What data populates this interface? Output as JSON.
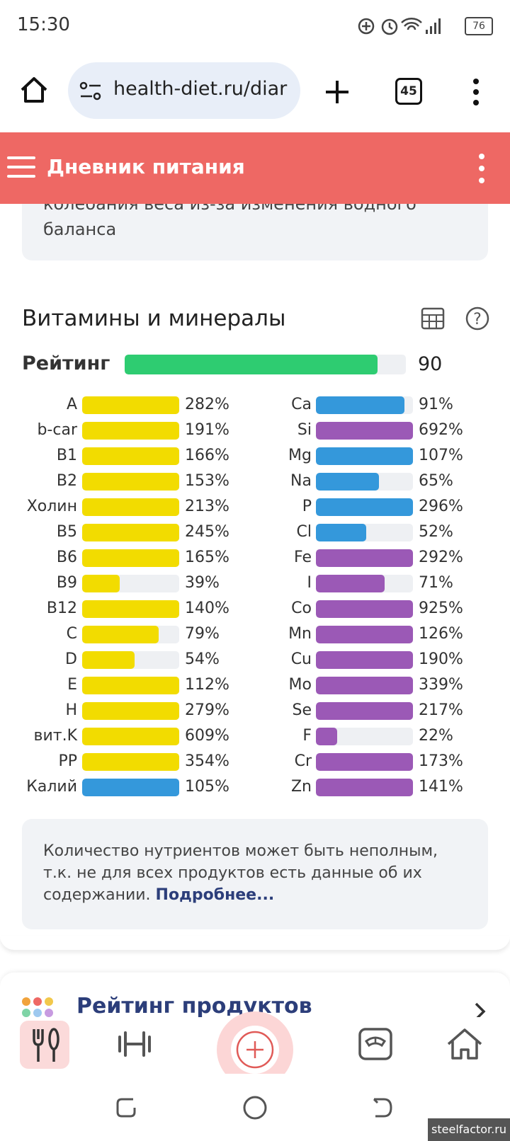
{
  "status_bar": {
    "time": "15:30",
    "battery": "76"
  },
  "browser": {
    "url": "health-diet.ru/diar",
    "tabs": "45"
  },
  "header": {
    "title": "Дневник питания"
  },
  "previous_card": {
    "text": "колебания веса из-за изменения водного баланса"
  },
  "section": {
    "title": "Витамины и минералы",
    "rating": {
      "label": "Рейтинг",
      "value": 90,
      "color": "#2ecc71"
    }
  },
  "columns": [
    [
      {
        "name": "A",
        "value": 282,
        "label": "282%",
        "color": "#f2dc00"
      },
      {
        "name": "b-car",
        "value": 191,
        "label": "191%",
        "color": "#f2dc00"
      },
      {
        "name": "B1",
        "value": 166,
        "label": "166%",
        "color": "#f2dc00"
      },
      {
        "name": "B2",
        "value": 153,
        "label": "153%",
        "color": "#f2dc00"
      },
      {
        "name": "Холин",
        "value": 213,
        "label": "213%",
        "color": "#f2dc00"
      },
      {
        "name": "B5",
        "value": 245,
        "label": "245%",
        "color": "#f2dc00"
      },
      {
        "name": "B6",
        "value": 165,
        "label": "165%",
        "color": "#f2dc00"
      },
      {
        "name": "B9",
        "value": 39,
        "label": "39%",
        "color": "#f2dc00"
      },
      {
        "name": "B12",
        "value": 140,
        "label": "140%",
        "color": "#f2dc00"
      },
      {
        "name": "C",
        "value": 79,
        "label": "79%",
        "color": "#f2dc00"
      },
      {
        "name": "D",
        "value": 54,
        "label": "54%",
        "color": "#f2dc00"
      },
      {
        "name": "E",
        "value": 112,
        "label": "112%",
        "color": "#f2dc00"
      },
      {
        "name": "H",
        "value": 279,
        "label": "279%",
        "color": "#f2dc00"
      },
      {
        "name": "вит.K",
        "value": 609,
        "label": "609%",
        "color": "#f2dc00"
      },
      {
        "name": "PP",
        "value": 354,
        "label": "354%",
        "color": "#f2dc00"
      },
      {
        "name": "Калий",
        "value": 105,
        "label": "105%",
        "color": "#3498db"
      }
    ],
    [
      {
        "name": "Ca",
        "value": 91,
        "label": "91%",
        "color": "#3498db"
      },
      {
        "name": "Si",
        "value": 692,
        "label": "692%",
        "color": "#9b59b6"
      },
      {
        "name": "Mg",
        "value": 107,
        "label": "107%",
        "color": "#3498db"
      },
      {
        "name": "Na",
        "value": 65,
        "label": "65%",
        "color": "#3498db"
      },
      {
        "name": "P",
        "value": 296,
        "label": "296%",
        "color": "#3498db"
      },
      {
        "name": "Cl",
        "value": 52,
        "label": "52%",
        "color": "#3498db"
      },
      {
        "name": "Fe",
        "value": 292,
        "label": "292%",
        "color": "#9b59b6"
      },
      {
        "name": "I",
        "value": 71,
        "label": "71%",
        "color": "#9b59b6"
      },
      {
        "name": "Co",
        "value": 925,
        "label": "925%",
        "color": "#9b59b6"
      },
      {
        "name": "Mn",
        "value": 126,
        "label": "126%",
        "color": "#9b59b6"
      },
      {
        "name": "Cu",
        "value": 190,
        "label": "190%",
        "color": "#9b59b6"
      },
      {
        "name": "Mo",
        "value": 339,
        "label": "339%",
        "color": "#9b59b6"
      },
      {
        "name": "Se",
        "value": 217,
        "label": "217%",
        "color": "#9b59b6"
      },
      {
        "name": "F",
        "value": 22,
        "label": "22%",
        "color": "#9b59b6"
      },
      {
        "name": "Cr",
        "value": 173,
        "label": "173%",
        "color": "#9b59b6"
      },
      {
        "name": "Zn",
        "value": 141,
        "label": "141%",
        "color": "#9b59b6"
      }
    ]
  ],
  "note": {
    "text": "Количество нутриентов может быть неполным, т.к. не для всех продуктов есть данные об их содержании.",
    "link": "Подробнее..."
  },
  "next_card": {
    "title": "Рейтинг продуктов"
  },
  "watermark": "steelfactor.ru"
}
